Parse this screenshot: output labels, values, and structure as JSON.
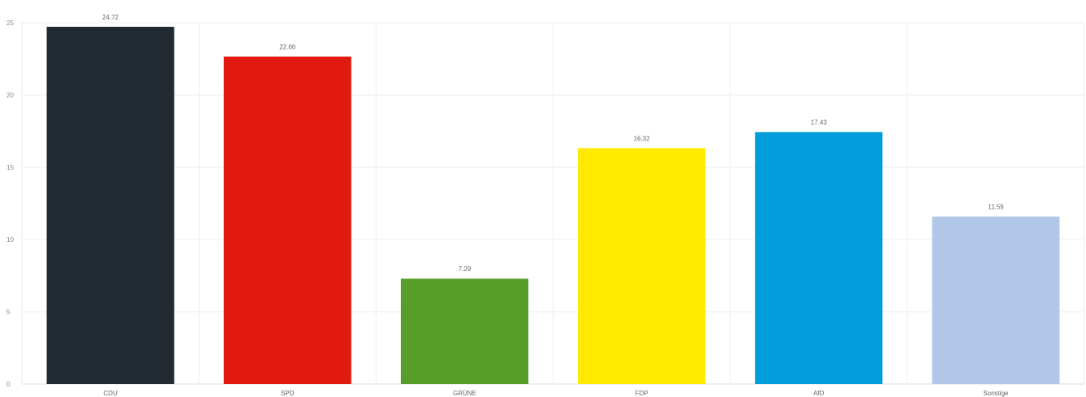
{
  "chart_data": {
    "type": "bar",
    "title": "",
    "xlabel": "",
    "ylabel": "",
    "categories": [
      "CDU",
      "SPD",
      "GRÜNE",
      "FDP",
      "AfD",
      "Sonstige"
    ],
    "values": [
      24.72,
      22.66,
      7.29,
      16.32,
      17.43,
      11.59
    ],
    "value_labels": [
      "24.72",
      "22.66",
      "7.29",
      "16.32",
      "17.43",
      "11.59"
    ],
    "colors": [
      "#212a31",
      "#e2190f",
      "#569d2a",
      "#ffea00",
      "#009cdb",
      "#b1c7e8"
    ],
    "ylim": [
      0,
      25
    ],
    "yticks": [
      0,
      5,
      10,
      15,
      20,
      25
    ],
    "grid": true,
    "legend": "none"
  }
}
